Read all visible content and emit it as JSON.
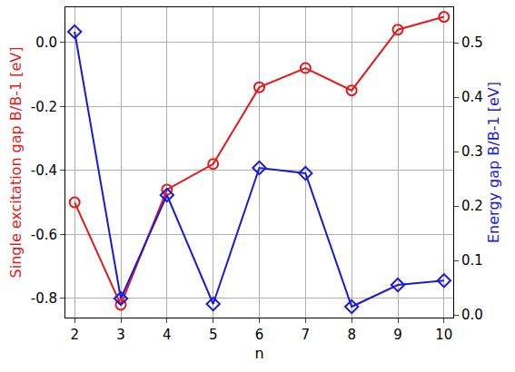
{
  "chart_data": {
    "type": "line",
    "x_label": "n",
    "y_label": "Single excitation gap B/B-1 [eV]",
    "y2_label": "Energy gap B/B-1 [eV]",
    "x": [
      2,
      3,
      4,
      5,
      6,
      7,
      8,
      9,
      10
    ],
    "xlim": [
      1.8,
      10.2
    ],
    "xticks": [
      2,
      3,
      4,
      5,
      6,
      7,
      8,
      9,
      10
    ],
    "ylim": [
      -0.86,
      0.11
    ],
    "yticks": [
      -0.8,
      -0.6,
      -0.4,
      -0.2,
      {
        "value": 0,
        "label": "0.0"
      }
    ],
    "y2lim": [
      -0.005,
      0.565
    ],
    "y2ticks": [
      {
        "value": 0,
        "label": "0.0"
      },
      0.1,
      0.2,
      0.3,
      0.4,
      0.5
    ],
    "grid": true,
    "series": [
      {
        "color": "#e31a1c",
        "marker": "circle-open",
        "values": [
          -0.5,
          -0.82,
          -0.46,
          -0.38,
          -0.14,
          -0.08,
          -0.15,
          0.04,
          0.08
        ]
      },
      {
        "color": "#1a1ad6",
        "marker": "diamond-open",
        "axis": "y2",
        "values": [
          0.52,
          0.03,
          0.22,
          0.02,
          0.27,
          0.26,
          0.015,
          0.055,
          0.063
        ]
      }
    ]
  }
}
